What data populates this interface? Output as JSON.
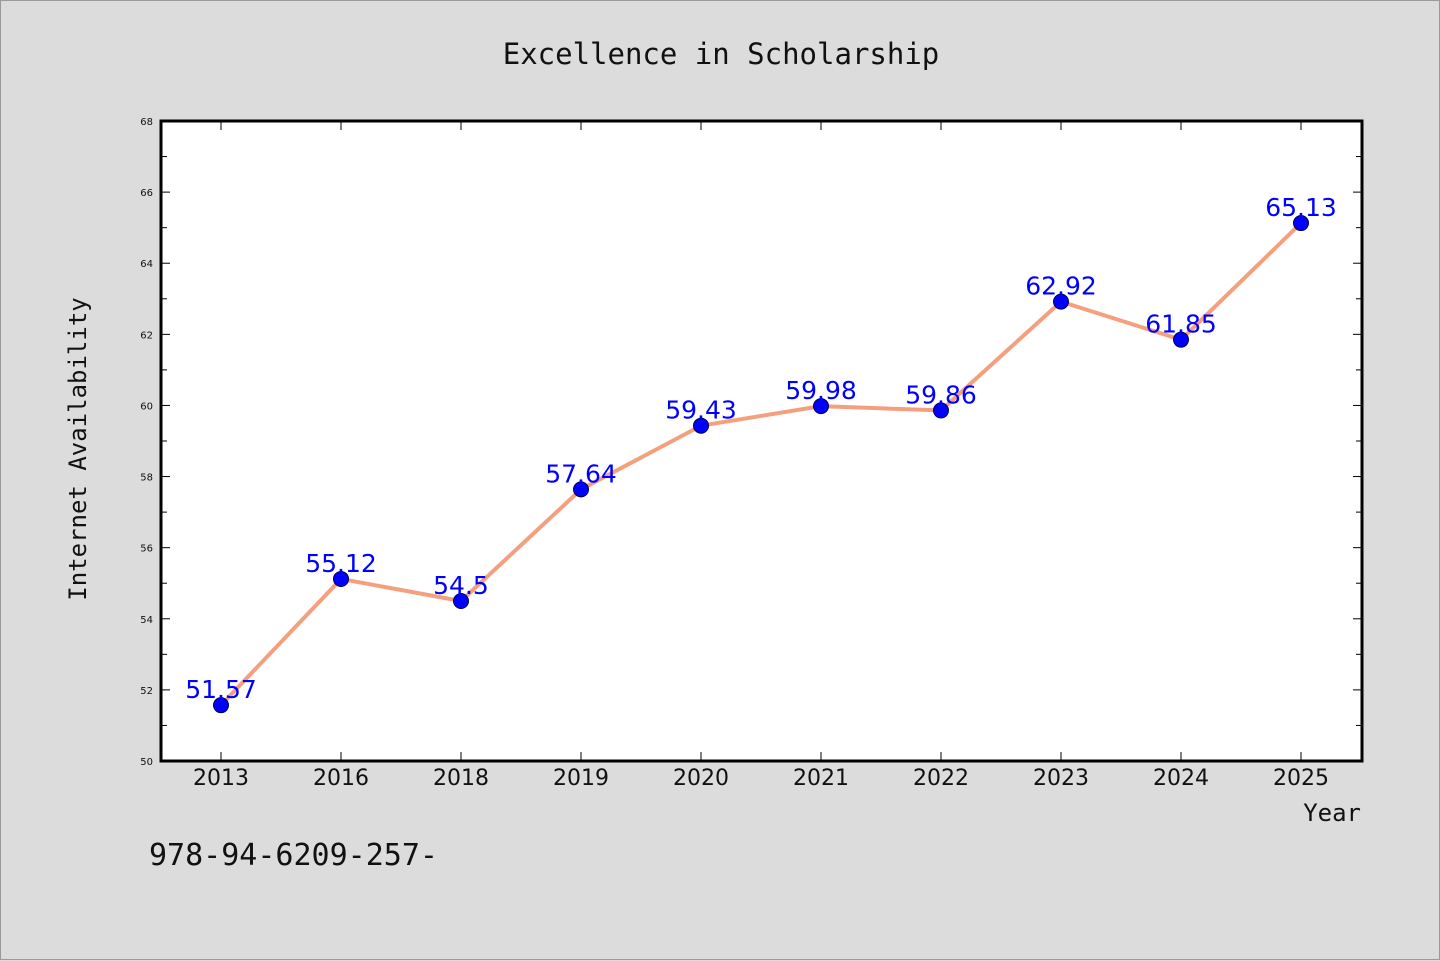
{
  "chart_data": {
    "type": "line",
    "title": "Excellence in Scholarship",
    "xlabel": "Year",
    "ylabel": "Internet Availability",
    "categories": [
      "2013",
      "2016",
      "2018",
      "2019",
      "2020",
      "2021",
      "2022",
      "2023",
      "2024",
      "2025"
    ],
    "series": [
      {
        "values": [
          51.57,
          55.12,
          54.5,
          57.64,
          59.43,
          59.98,
          59.86,
          62.92,
          61.85,
          65.13
        ]
      }
    ],
    "data_labels": [
      "51.57",
      "55.12",
      "54.5",
      "57.64",
      "59.43",
      "59.98",
      "59.86",
      "62.92",
      "61.85",
      "65.13"
    ],
    "ylim": [
      50,
      68
    ],
    "yticks": [
      50,
      52,
      54,
      56,
      58,
      60,
      62,
      64,
      66,
      68
    ],
    "grid": false,
    "legend": "none",
    "line_color": "#f4a07e",
    "marker_color": "#0000ff",
    "label_color": "#0000ff"
  },
  "footer": {
    "text": "978-94-6209-257-"
  }
}
